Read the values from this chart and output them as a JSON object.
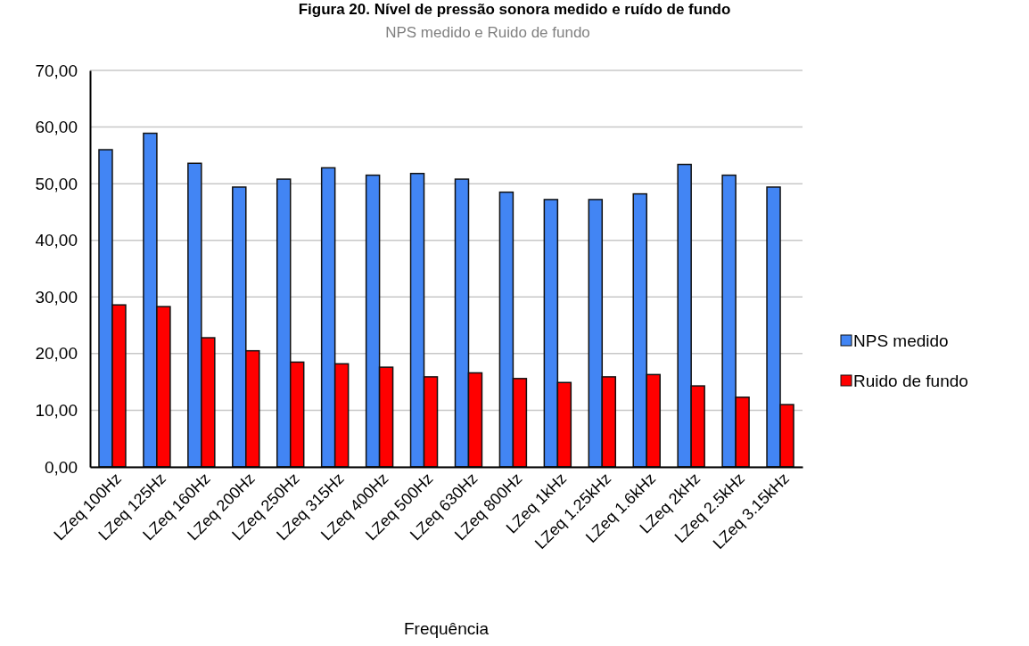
{
  "chart_data": {
    "type": "bar",
    "title": "Figura 20. Nível de pressão sonora medido e ruído de fundo",
    "subtitle": "NPS medido e Ruido de fundo",
    "xlabel": "Frequência",
    "categories": [
      "LZeq 100Hz",
      "LZeq 125Hz",
      "LZeq 160Hz",
      "LZeq 200Hz",
      "LZeq 250Hz",
      "LZeq 315Hz",
      "LZeq 400Hz",
      "LZeq 500Hz",
      "LZeq 630Hz",
      "LZeq 800Hz",
      "LZeq 1kHz",
      "LZeq 1.25kHz",
      "LZeq 1.6kHz",
      "LZeq 2kHz",
      "LZeq 2.5kHz",
      "LZeq 3.15kHz"
    ],
    "series": [
      {
        "name": "NPS medido",
        "color": "#4285f4",
        "values": [
          56.0,
          58.9,
          53.6,
          49.4,
          50.8,
          52.8,
          51.5,
          51.8,
          50.8,
          48.5,
          47.2,
          47.2,
          48.2,
          53.4,
          51.5,
          49.4
        ]
      },
      {
        "name": "Ruido de fundo",
        "color": "#ff0000",
        "values": [
          28.6,
          28.3,
          22.8,
          20.5,
          18.5,
          18.2,
          17.6,
          15.9,
          16.6,
          15.6,
          14.9,
          15.9,
          16.3,
          14.3,
          12.3,
          11.0
        ]
      }
    ],
    "ylim": [
      0,
      70
    ],
    "yticks": [
      {
        "value": 0,
        "label": "0,00"
      },
      {
        "value": 10,
        "label": "10,00"
      },
      {
        "value": 20,
        "label": "20,00"
      },
      {
        "value": 30,
        "label": "30,00"
      },
      {
        "value": 40,
        "label": "40,00"
      },
      {
        "value": 50,
        "label": "50,00"
      },
      {
        "value": 60,
        "label": "60,00"
      },
      {
        "value": 70,
        "label": "70,00"
      }
    ],
    "grid": "y",
    "legend": "right"
  }
}
